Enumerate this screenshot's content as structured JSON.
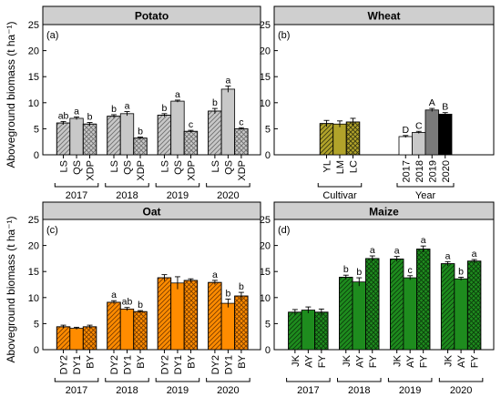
{
  "ylabel": "Aboveground biomass (t ha⁻¹)",
  "chart_data": [
    {
      "type": "bar",
      "title": "Potato",
      "panel_label": "(a)",
      "ylim": [
        0,
        25
      ],
      "yticks": [
        0,
        5,
        10,
        15,
        20,
        25
      ],
      "colors": {
        "fill": "#c8c8c8",
        "hatch": "#6e6e6e"
      },
      "groups": [
        {
          "label": "2017",
          "bars": [
            {
              "name": "LS",
              "value": 6.1,
              "err": 0.3,
              "letter": "ab",
              "pattern": "diag"
            },
            {
              "name": "QS",
              "value": 7.0,
              "err": 0.25,
              "letter": "a",
              "pattern": "none"
            },
            {
              "name": "XDP",
              "value": 5.9,
              "err": 0.3,
              "letter": "b",
              "pattern": "cross"
            }
          ]
        },
        {
          "label": "2018",
          "bars": [
            {
              "name": "LS",
              "value": 7.4,
              "err": 0.3,
              "letter": "b",
              "pattern": "diag"
            },
            {
              "name": "QS",
              "value": 7.9,
              "err": 0.4,
              "letter": "a",
              "pattern": "none"
            },
            {
              "name": "XDP",
              "value": 3.2,
              "err": 0.2,
              "letter": "b",
              "pattern": "cross"
            }
          ]
        },
        {
          "label": "2019",
          "bars": [
            {
              "name": "LS",
              "value": 7.6,
              "err": 0.3,
              "letter": "b",
              "pattern": "diag"
            },
            {
              "name": "QS",
              "value": 10.3,
              "err": 0.2,
              "letter": "a",
              "pattern": "none"
            },
            {
              "name": "XDP",
              "value": 4.5,
              "err": 0.2,
              "letter": "c",
              "pattern": "cross"
            }
          ]
        },
        {
          "label": "2020",
          "bars": [
            {
              "name": "LS",
              "value": 8.4,
              "err": 0.5,
              "letter": "b",
              "pattern": "diag"
            },
            {
              "name": "QS",
              "value": 12.6,
              "err": 0.6,
              "letter": "a",
              "pattern": "none"
            },
            {
              "name": "XDP",
              "value": 5.0,
              "err": 0.2,
              "letter": "c",
              "pattern": "cross"
            }
          ]
        }
      ]
    },
    {
      "type": "bar",
      "title": "Wheat",
      "panel_label": "(b)",
      "ylim": [
        0,
        25
      ],
      "yticks": [
        0,
        5,
        10,
        15,
        20,
        25
      ],
      "groups": [
        {
          "label": "Cultivar",
          "bars": [
            {
              "name": "YL",
              "value": 6.0,
              "err": 0.6,
              "letter": "",
              "fill": "#b1a32a",
              "pattern": "diag"
            },
            {
              "name": "LM",
              "value": 5.9,
              "err": 0.6,
              "letter": "",
              "fill": "#b1a32a",
              "pattern": "none"
            },
            {
              "name": "LC",
              "value": 6.3,
              "err": 0.7,
              "letter": "",
              "fill": "#b1a32a",
              "pattern": "cross"
            }
          ]
        },
        {
          "label": "Year",
          "bars": [
            {
              "name": "2017",
              "value": 3.5,
              "err": 0.2,
              "letter": "D",
              "fill": "#ffffff",
              "pattern": "none"
            },
            {
              "name": "2018",
              "value": 4.3,
              "err": 0.2,
              "letter": "C",
              "fill": "#c8c8c8",
              "pattern": "none"
            },
            {
              "name": "2019",
              "value": 8.6,
              "err": 0.3,
              "letter": "A",
              "fill": "#7a7a7a",
              "pattern": "none"
            },
            {
              "name": "2020",
              "value": 7.8,
              "err": 0.3,
              "letter": "B",
              "fill": "#000000",
              "pattern": "none"
            }
          ]
        }
      ]
    },
    {
      "type": "bar",
      "title": "Oat",
      "panel_label": "(c)",
      "ylim": [
        0,
        25
      ],
      "yticks": [
        0,
        5,
        10,
        15,
        20,
        25
      ],
      "colors": {
        "fill": "#ff8c00",
        "hatch": "#7a3d00"
      },
      "groups": [
        {
          "label": "2017",
          "bars": [
            {
              "name": "DY2",
              "value": 4.4,
              "err": 0.3,
              "letter": "",
              "pattern": "diag"
            },
            {
              "name": "DY1",
              "value": 4.1,
              "err": 0.2,
              "letter": "",
              "pattern": "none"
            },
            {
              "name": "BY",
              "value": 4.4,
              "err": 0.3,
              "letter": "",
              "pattern": "cross"
            }
          ]
        },
        {
          "label": "2018",
          "bars": [
            {
              "name": "DY2",
              "value": 9.1,
              "err": 0.3,
              "letter": "a",
              "pattern": "diag"
            },
            {
              "name": "DY1",
              "value": 7.8,
              "err": 0.3,
              "letter": "ab",
              "pattern": "none"
            },
            {
              "name": "BY",
              "value": 7.3,
              "err": 0.2,
              "letter": "b",
              "pattern": "cross"
            }
          ]
        },
        {
          "label": "2019",
          "bars": [
            {
              "name": "DY2",
              "value": 13.8,
              "err": 0.6,
              "letter": "",
              "pattern": "diag"
            },
            {
              "name": "DY1",
              "value": 12.8,
              "err": 1.2,
              "letter": "",
              "pattern": "none"
            },
            {
              "name": "BY",
              "value": 13.3,
              "err": 0.3,
              "letter": "",
              "pattern": "cross"
            }
          ]
        },
        {
          "label": "2020",
          "bars": [
            {
              "name": "DY2",
              "value": 12.9,
              "err": 0.4,
              "letter": "a",
              "pattern": "diag"
            },
            {
              "name": "DY1",
              "value": 8.9,
              "err": 0.8,
              "letter": "b",
              "pattern": "none"
            },
            {
              "name": "BY",
              "value": 10.3,
              "err": 0.7,
              "letter": "b",
              "pattern": "cross"
            }
          ]
        }
      ]
    },
    {
      "type": "bar",
      "title": "Maize",
      "panel_label": "(d)",
      "ylim": [
        0,
        25
      ],
      "yticks": [
        0,
        5,
        10,
        15,
        20,
        25
      ],
      "colors": {
        "fill": "#1e8c1e",
        "hatch": "#0c3d0c"
      },
      "groups": [
        {
          "label": "2017",
          "bars": [
            {
              "name": "JK",
              "value": 7.2,
              "err": 0.5,
              "letter": "",
              "pattern": "diag"
            },
            {
              "name": "AY",
              "value": 7.6,
              "err": 0.6,
              "letter": "",
              "pattern": "none"
            },
            {
              "name": "FY",
              "value": 7.2,
              "err": 0.6,
              "letter": "",
              "pattern": "cross"
            }
          ]
        },
        {
          "label": "2018",
          "bars": [
            {
              "name": "JK",
              "value": 13.9,
              "err": 0.4,
              "letter": "b",
              "pattern": "diag"
            },
            {
              "name": "AY",
              "value": 13.0,
              "err": 0.8,
              "letter": "b",
              "pattern": "none"
            },
            {
              "name": "FY",
              "value": 17.5,
              "err": 0.5,
              "letter": "a",
              "pattern": "cross"
            }
          ]
        },
        {
          "label": "2019",
          "bars": [
            {
              "name": "JK",
              "value": 17.4,
              "err": 0.5,
              "letter": "a",
              "pattern": "diag"
            },
            {
              "name": "AY",
              "value": 13.8,
              "err": 0.4,
              "letter": "c",
              "pattern": "none"
            },
            {
              "name": "FY",
              "value": 19.3,
              "err": 0.6,
              "letter": "a",
              "pattern": "cross"
            }
          ]
        },
        {
          "label": "2020",
          "bars": [
            {
              "name": "JK",
              "value": 16.5,
              "err": 0.4,
              "letter": "a",
              "pattern": "diag"
            },
            {
              "name": "AY",
              "value": 13.6,
              "err": 0.3,
              "letter": "b",
              "pattern": "none"
            },
            {
              "name": "FY",
              "value": 17.0,
              "err": 0.3,
              "letter": "a",
              "pattern": "cross"
            }
          ]
        }
      ]
    }
  ]
}
